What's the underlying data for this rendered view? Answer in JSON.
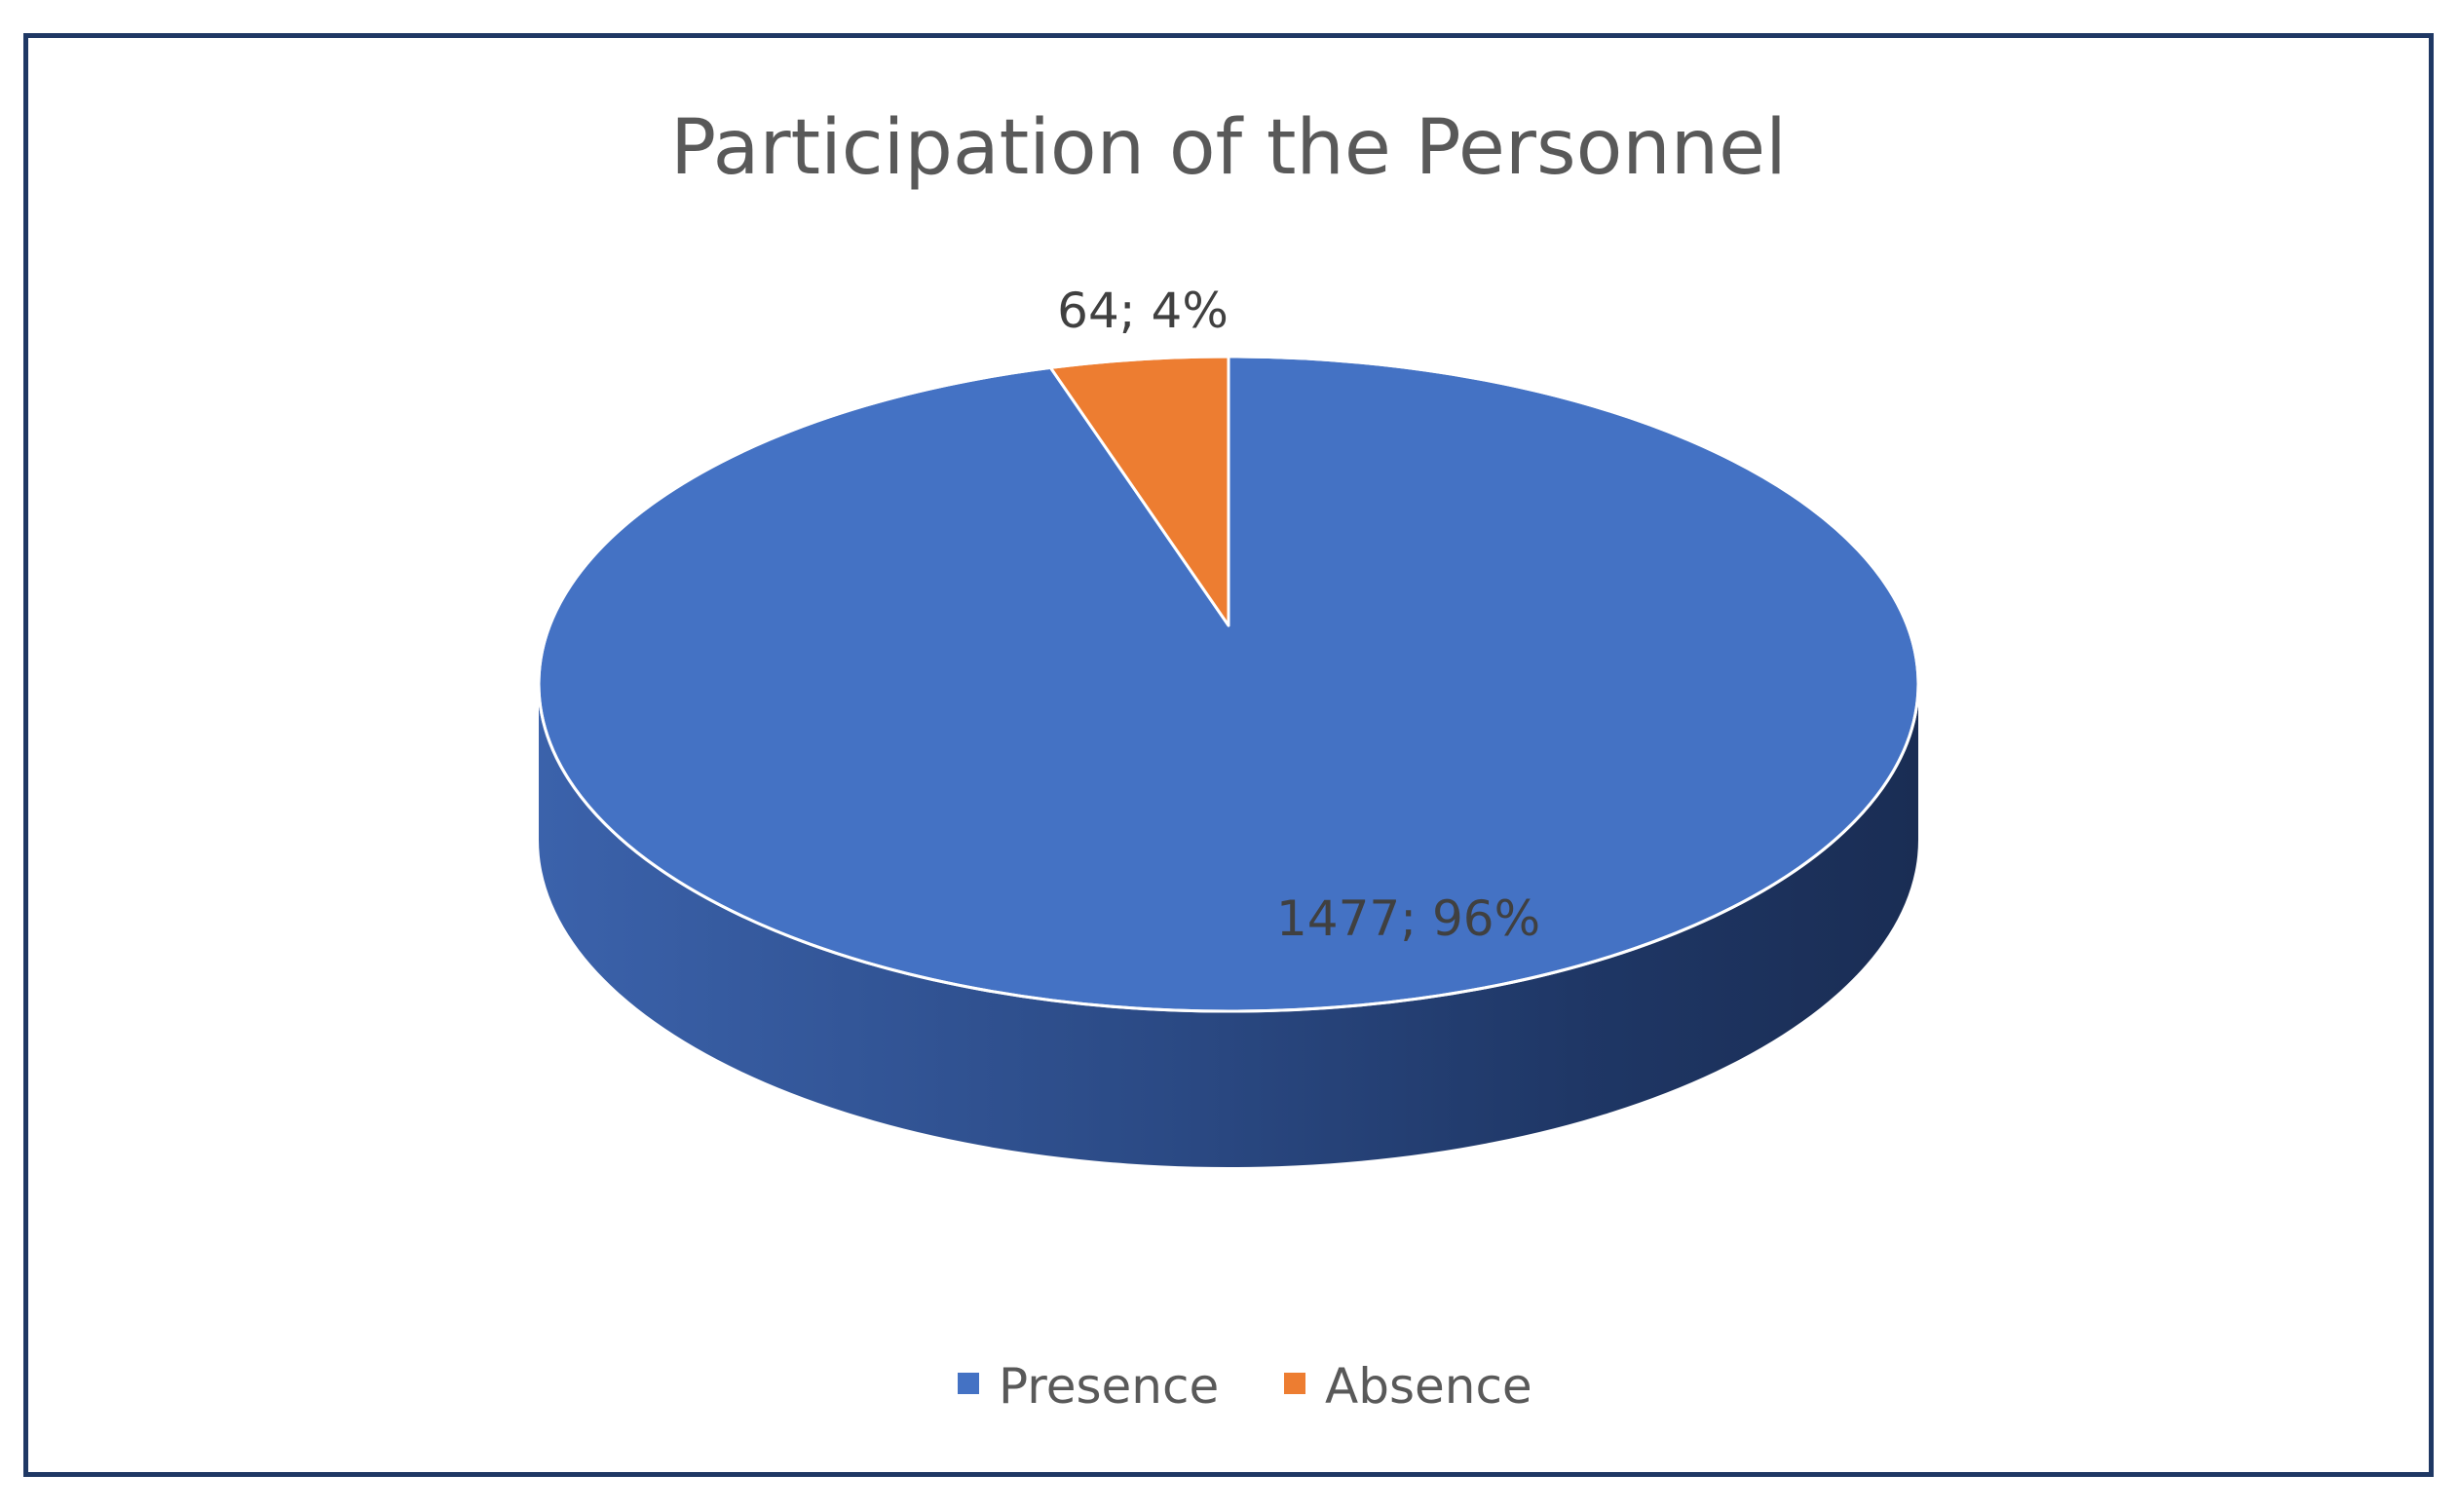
{
  "chart_data": {
    "type": "pie",
    "style": "3d",
    "title": "Participation of the Personnel",
    "categories": [
      "Presence",
      "Absence"
    ],
    "values": [
      1477,
      64
    ],
    "percentages": [
      96,
      4
    ],
    "data_labels": [
      "1477; 96%",
      "64; 4%"
    ],
    "colors": [
      "#4472c4",
      "#ed7d31"
    ],
    "legend": {
      "position": "bottom",
      "entries": [
        "Presence",
        "Absence"
      ]
    }
  }
}
